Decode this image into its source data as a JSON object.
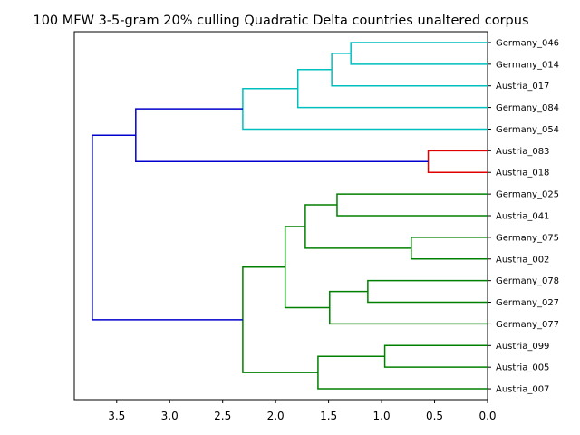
{
  "chart_data": {
    "type": "dendrogram",
    "title": "100 MFW 3-5-gram 20% culling Quadratic Delta countries unaltered corpus",
    "xlabel": "",
    "ylabel": "",
    "xlim": [
      3.9,
      0.0
    ],
    "x_ticks": [
      3.5,
      3.0,
      2.5,
      2.0,
      1.5,
      1.0,
      0.5,
      0.0
    ],
    "x_tick_labels": [
      "3.5",
      "3.0",
      "2.5",
      "2.0",
      "1.5",
      "1.0",
      "0.5",
      "0.0"
    ],
    "leaves": [
      "Germany_046",
      "Germany_014",
      "Austria_017",
      "Germany_084",
      "Germany_054",
      "Austria_083",
      "Austria_018",
      "Germany_025",
      "Austria_041",
      "Germany_075",
      "Austria_002",
      "Germany_078",
      "Germany_027",
      "Germany_077",
      "Austria_099",
      "Austria_005",
      "Austria_007"
    ],
    "colors": {
      "cyan": "#00bfbf",
      "red": "#e00000",
      "green": "#008000",
      "blue": "#0000cc"
    },
    "merges": [
      {
        "id": "c1",
        "children": [
          "L0",
          "L1"
        ],
        "height": 1.29,
        "color": "cyan"
      },
      {
        "id": "c2",
        "children": [
          "c1",
          "L2"
        ],
        "height": 1.47,
        "color": "cyan"
      },
      {
        "id": "c3",
        "children": [
          "c2",
          "L3"
        ],
        "height": 1.79,
        "color": "cyan"
      },
      {
        "id": "c4",
        "children": [
          "c3",
          "L4"
        ],
        "height": 2.31,
        "color": "cyan"
      },
      {
        "id": "r1",
        "children": [
          "L5",
          "L6"
        ],
        "height": 0.56,
        "color": "red"
      },
      {
        "id": "b1",
        "children": [
          "c4",
          "r1"
        ],
        "height": 3.32,
        "color": "blue"
      },
      {
        "id": "g1",
        "children": [
          "L7",
          "L8"
        ],
        "height": 1.42,
        "color": "green"
      },
      {
        "id": "g2",
        "children": [
          "L9",
          "L10"
        ],
        "height": 0.72,
        "color": "green"
      },
      {
        "id": "g3",
        "children": [
          "g1",
          "g2"
        ],
        "height": 1.72,
        "color": "green"
      },
      {
        "id": "g4",
        "children": [
          "L11",
          "L12"
        ],
        "height": 1.13,
        "color": "green"
      },
      {
        "id": "g5",
        "children": [
          "g4",
          "L13"
        ],
        "height": 1.49,
        "color": "green"
      },
      {
        "id": "g6",
        "children": [
          "g3",
          "g5"
        ],
        "height": 1.91,
        "color": "green"
      },
      {
        "id": "g7",
        "children": [
          "L14",
          "L15"
        ],
        "height": 0.97,
        "color": "green"
      },
      {
        "id": "g8",
        "children": [
          "g7",
          "L16"
        ],
        "height": 1.6,
        "color": "green"
      },
      {
        "id": "g9",
        "children": [
          "g6",
          "g8"
        ],
        "height": 2.31,
        "color": "green"
      },
      {
        "id": "b2",
        "children": [
          "b1",
          "g9"
        ],
        "height": 3.73,
        "color": "blue"
      }
    ]
  }
}
